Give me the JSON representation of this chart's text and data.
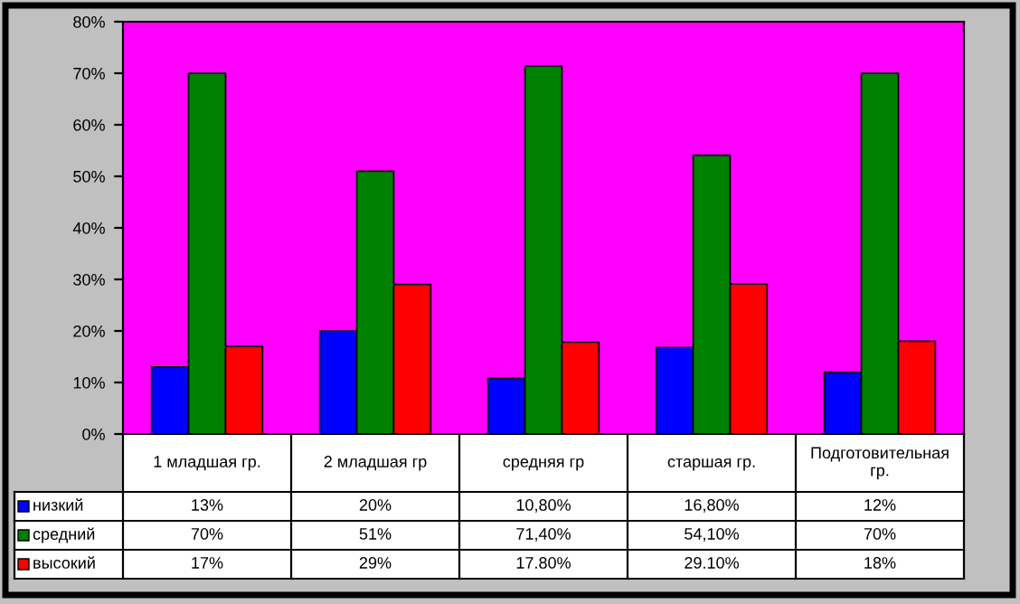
{
  "chart_data": {
    "type": "bar",
    "categories": [
      "1 младшая гр.",
      "2 младшая гр",
      "средняя гр",
      "старшая гр.",
      "Подготовительная гр."
    ],
    "series": [
      {
        "name": "низкий",
        "color": "#0000ff",
        "values": [
          13,
          20,
          10.8,
          16.8,
          12
        ],
        "value_labels": [
          "13%",
          "20%",
          "10,80%",
          "16,80%",
          "12%"
        ]
      },
      {
        "name": "средний",
        "color": "#008000",
        "values": [
          70,
          51,
          71.4,
          54.1,
          70
        ],
        "value_labels": [
          "70%",
          "51%",
          "71,40%",
          "54,10%",
          "70%"
        ]
      },
      {
        "name": "высокий",
        "color": "#ff0000",
        "values": [
          17,
          29,
          17.8,
          29.1,
          18
        ],
        "value_labels": [
          "17%",
          "29%",
          "17.80%",
          "29.10%",
          "18%"
        ]
      }
    ],
    "ylim": [
      0,
      80
    ],
    "legend": "bottom left",
    "yticks": [
      {
        "value": 0,
        "label": "0%"
      },
      {
        "value": 10,
        "label": "10%"
      },
      {
        "value": 20,
        "label": "20%"
      },
      {
        "value": 30,
        "label": "30%"
      },
      {
        "value": 40,
        "label": "40%"
      },
      {
        "value": 50,
        "label": "50%"
      },
      {
        "value": 60,
        "label": "60%"
      },
      {
        "value": 70,
        "label": "70%"
      },
      {
        "value": 80,
        "label": "80%"
      }
    ]
  }
}
